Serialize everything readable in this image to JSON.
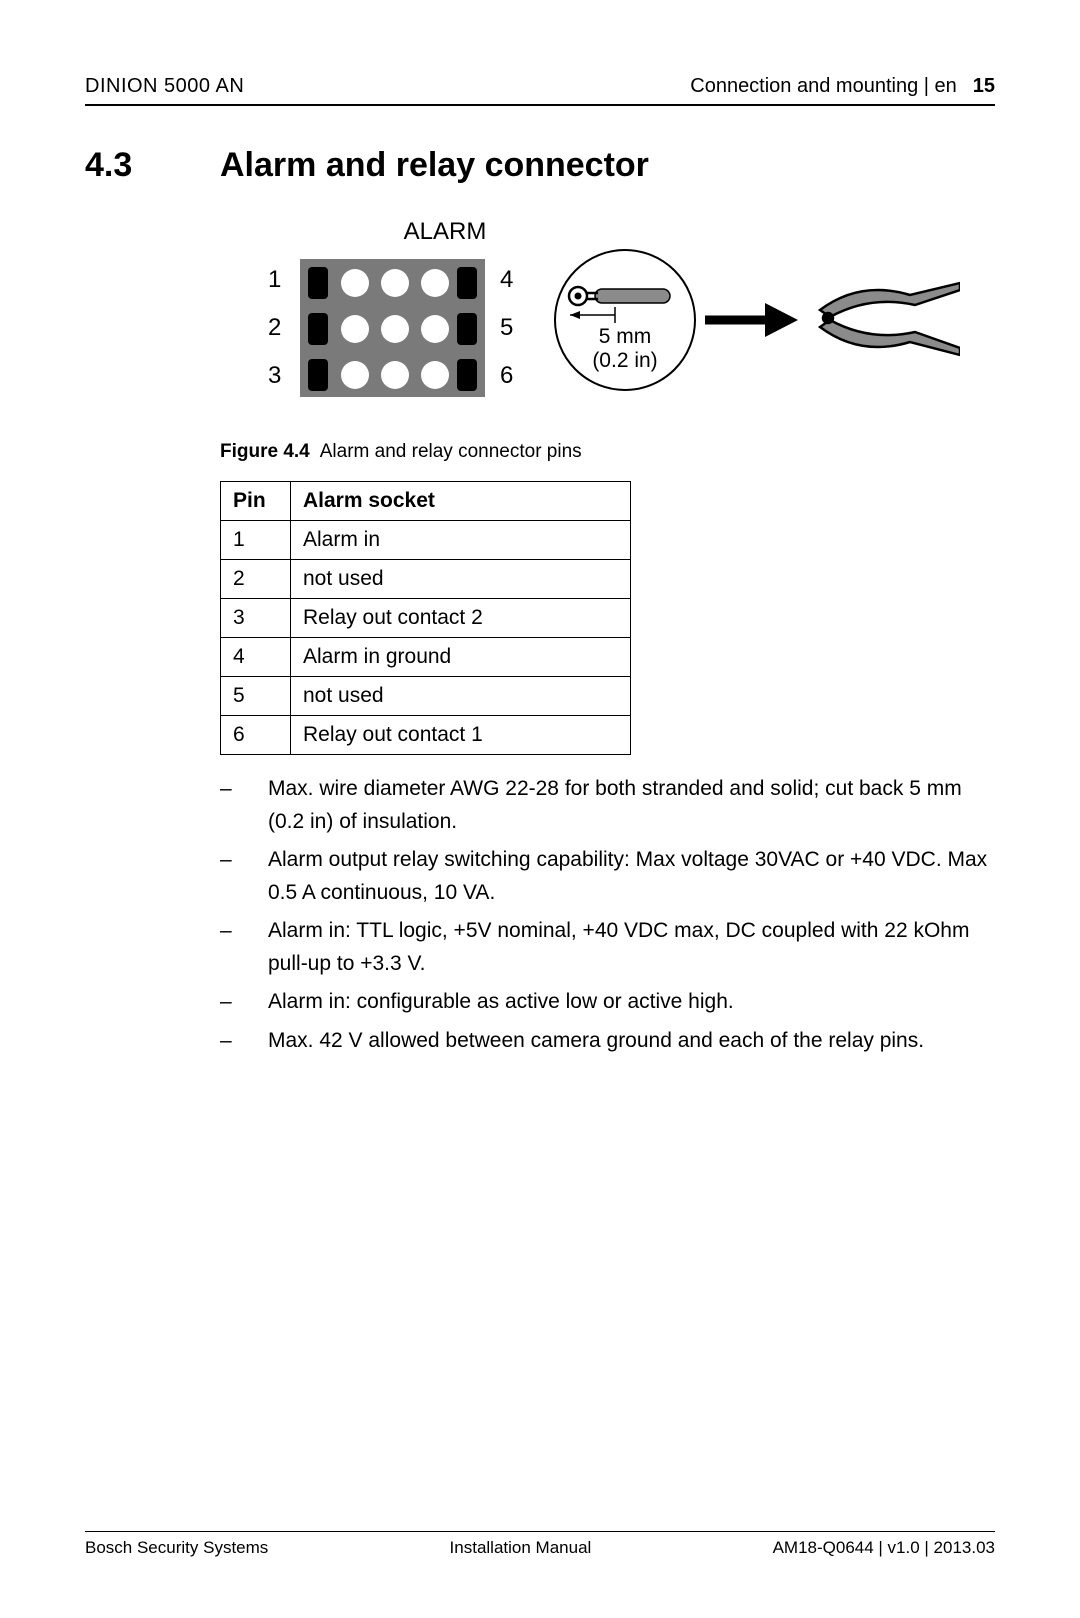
{
  "header": {
    "product": "DINION 5000 AN",
    "chapter": "Connection and mounting | en",
    "page_number": "15"
  },
  "section": {
    "number": "4.3",
    "title": "Alarm and relay connector"
  },
  "figure": {
    "label_text": "ALARM",
    "pin_left_labels": [
      "1",
      "2",
      "3"
    ],
    "pin_right_labels": [
      "4",
      "5",
      "6"
    ],
    "strip_mm": "5 mm",
    "strip_in": "(0.2 in)",
    "caption_label": "Figure 4.4",
    "caption_text": "Alarm and relay connector pins",
    "connector_fill": "#7a7a7a",
    "connector_dot_fill": "#ffffff",
    "connector_rect_fill": "#000000",
    "arrow_color": "#000000",
    "wire_fill": "#8b8b8b",
    "stroke_color": "#000000",
    "bg_color": "#ffffff",
    "font_family": "Arial, Helvetica, sans-serif",
    "label_fontsize_pt": 24,
    "label_fontsize_small_pt": 20,
    "title_fontsize_pt": 24
  },
  "table": {
    "columns": [
      "Pin",
      "Alarm socket"
    ],
    "rows": [
      [
        "1",
        "Alarm in"
      ],
      [
        "2",
        "not used"
      ],
      [
        "3",
        "Relay out contact 2"
      ],
      [
        "4",
        "Alarm in ground"
      ],
      [
        "5",
        "not used"
      ],
      [
        "6",
        "Relay out contact 1"
      ]
    ],
    "border_color": "#000000",
    "header_weight": "bold",
    "cell_fontsize_pt": 16
  },
  "notes": [
    "Max. wire diameter AWG 22-28 for both stranded and solid; cut back 5 mm (0.2 in) of insulation.",
    "Alarm output relay switching capability: Max voltage 30VAC or +40 VDC. Max 0.5 A continuous, 10 VA.",
    "Alarm in: TTL logic, +5V nominal, +40 VDC max, DC coupled with 22 kOhm pull-up to +3.3 V.",
    "Alarm in: configurable as active low or active high.",
    "Max. 42 V allowed between camera ground and each of the relay pins."
  ],
  "footer": {
    "left": "Bosch Security Systems",
    "center": "Installation Manual",
    "right": "AM18-Q0644 | v1.0 | 2013.03"
  }
}
